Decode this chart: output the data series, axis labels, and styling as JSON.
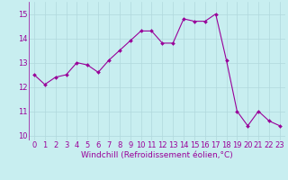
{
  "x": [
    0,
    1,
    2,
    3,
    4,
    5,
    6,
    7,
    8,
    9,
    10,
    11,
    12,
    13,
    14,
    15,
    16,
    17,
    18,
    19,
    20,
    21,
    22,
    23
  ],
  "y": [
    12.5,
    12.1,
    12.4,
    12.5,
    13.0,
    12.9,
    12.6,
    13.1,
    13.5,
    13.9,
    14.3,
    14.3,
    13.8,
    13.8,
    14.8,
    14.7,
    14.7,
    15.0,
    13.1,
    11.0,
    10.4,
    11.0,
    10.6,
    10.4
  ],
  "line_color": "#990099",
  "marker": "D",
  "marker_size": 2.0,
  "bg_color": "#c8eef0",
  "grid_color": "#b0d8dc",
  "xlabel": "Windchill (Refroidissement éolien,°C)",
  "xlabel_color": "#990099",
  "xlabel_fontsize": 6.5,
  "tick_color": "#990099",
  "tick_fontsize": 6,
  "ylim": [
    9.8,
    15.5
  ],
  "xlim": [
    -0.5,
    23.5
  ],
  "yticks": [
    10,
    11,
    12,
    13,
    14,
    15
  ],
  "xticks": [
    0,
    1,
    2,
    3,
    4,
    5,
    6,
    7,
    8,
    9,
    10,
    11,
    12,
    13,
    14,
    15,
    16,
    17,
    18,
    19,
    20,
    21,
    22,
    23
  ]
}
